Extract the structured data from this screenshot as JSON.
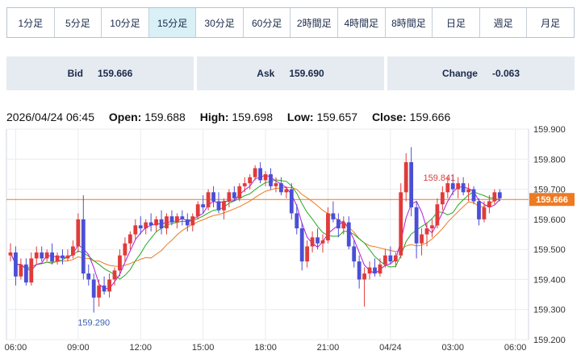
{
  "tabs": [
    {
      "label": "1分足"
    },
    {
      "label": "5分足"
    },
    {
      "label": "10分足"
    },
    {
      "label": "15分足",
      "active": true
    },
    {
      "label": "30分足"
    },
    {
      "label": "60分足"
    },
    {
      "label": "2時間足"
    },
    {
      "label": "4時間足"
    },
    {
      "label": "8時間足"
    },
    {
      "label": "日足"
    },
    {
      "label": "週足"
    },
    {
      "label": "月足"
    }
  ],
  "quotes": {
    "bid_label": "Bid",
    "bid_value": "159.666",
    "ask_label": "Ask",
    "ask_value": "159.690",
    "change_label": "Change",
    "change_value": "-0.063"
  },
  "ohlc": {
    "datetime": "2026/04/24 06:45",
    "open_label": "Open:",
    "open": "159.688",
    "high_label": "High:",
    "high": "159.698",
    "low_label": "Low:",
    "low": "159.657",
    "close_label": "Close:",
    "close": "159.666"
  },
  "colors": {
    "up": "#e03b3b",
    "down": "#4a4fd6",
    "ma_short": "#b21ad6",
    "ma_mid": "#22a822",
    "ma_long": "#ee7a22",
    "price_line": "#ee7a22"
  },
  "chart_data": {
    "type": "candlestick",
    "y_ticks": [
      159.2,
      159.3,
      159.4,
      159.5,
      159.6,
      159.7,
      159.8,
      159.9
    ],
    "ylim": [
      159.2,
      159.9
    ],
    "x_ticks": [
      {
        "label": "06:00",
        "i": 1
      },
      {
        "label": "09:00",
        "i": 13
      },
      {
        "label": "12:00",
        "i": 25
      },
      {
        "label": "15:00",
        "i": 37
      },
      {
        "label": "18:00",
        "i": 49
      },
      {
        "label": "21:00",
        "i": 61
      },
      {
        "label": "04/24",
        "i": 73
      },
      {
        "label": "03:00",
        "i": 85
      },
      {
        "label": "06:00",
        "i": 97
      }
    ],
    "current_price": 159.666,
    "annotations": [
      {
        "text": "159.841",
        "i": 83
      },
      {
        "text": "159.290",
        "i": 16
      }
    ],
    "candles": [
      [
        159.48,
        159.52,
        159.46,
        159.49
      ],
      [
        159.49,
        159.51,
        159.38,
        159.41
      ],
      [
        159.41,
        159.47,
        159.4,
        159.45
      ],
      [
        159.45,
        159.47,
        159.38,
        159.39
      ],
      [
        159.39,
        159.49,
        159.38,
        159.47
      ],
      [
        159.47,
        159.51,
        159.45,
        159.49
      ],
      [
        159.49,
        159.51,
        159.46,
        159.47
      ],
      [
        159.47,
        159.5,
        159.46,
        159.49
      ],
      [
        159.49,
        159.52,
        159.45,
        159.46
      ],
      [
        159.46,
        159.49,
        159.45,
        159.48
      ],
      [
        159.48,
        159.5,
        159.45,
        159.47
      ],
      [
        159.47,
        159.5,
        159.46,
        159.48
      ],
      [
        159.48,
        159.53,
        159.47,
        159.51
      ],
      [
        159.51,
        159.62,
        159.49,
        159.6
      ],
      [
        159.6,
        159.68,
        159.4,
        159.42
      ],
      [
        159.42,
        159.45,
        159.38,
        159.4
      ],
      [
        159.4,
        159.42,
        159.29,
        159.34
      ],
      [
        159.34,
        159.4,
        159.31,
        159.38
      ],
      [
        159.38,
        159.41,
        159.35,
        159.36
      ],
      [
        159.36,
        159.42,
        159.34,
        159.4
      ],
      [
        159.4,
        159.44,
        159.38,
        159.43
      ],
      [
        159.43,
        159.5,
        159.41,
        159.48
      ],
      [
        159.48,
        159.54,
        159.46,
        159.52
      ],
      [
        159.52,
        159.56,
        159.5,
        159.55
      ],
      [
        159.55,
        159.6,
        159.53,
        159.58
      ],
      [
        159.58,
        159.61,
        159.55,
        159.57
      ],
      [
        159.57,
        159.6,
        159.55,
        159.59
      ],
      [
        159.59,
        159.62,
        159.56,
        159.58
      ],
      [
        159.58,
        159.61,
        159.56,
        159.6
      ],
      [
        159.6,
        159.63,
        159.55,
        159.57
      ],
      [
        159.57,
        159.62,
        159.55,
        159.61
      ],
      [
        159.61,
        159.63,
        159.58,
        159.59
      ],
      [
        159.59,
        159.62,
        159.57,
        159.61
      ],
      [
        159.61,
        159.63,
        159.58,
        159.6
      ],
      [
        159.6,
        159.62,
        159.56,
        159.58
      ],
      [
        159.58,
        159.62,
        159.56,
        159.61
      ],
      [
        159.61,
        159.66,
        159.6,
        159.65
      ],
      [
        159.65,
        159.68,
        159.62,
        159.64
      ],
      [
        159.64,
        159.7,
        159.63,
        159.69
      ],
      [
        159.69,
        159.71,
        159.64,
        159.66
      ],
      [
        159.66,
        159.69,
        159.62,
        159.63
      ],
      [
        159.63,
        159.67,
        159.6,
        159.66
      ],
      [
        159.66,
        159.7,
        159.64,
        159.69
      ],
      [
        159.69,
        159.71,
        159.66,
        159.67
      ],
      [
        159.67,
        159.72,
        159.66,
        159.71
      ],
      [
        159.71,
        159.74,
        159.69,
        159.72
      ],
      [
        159.72,
        159.75,
        159.7,
        159.74
      ],
      [
        159.74,
        159.78,
        159.73,
        159.77
      ],
      [
        159.77,
        159.79,
        159.72,
        159.73
      ],
      [
        159.73,
        159.76,
        159.71,
        159.75
      ],
      [
        159.75,
        159.77,
        159.7,
        159.71
      ],
      [
        159.71,
        159.74,
        159.69,
        159.72
      ],
      [
        159.72,
        159.74,
        159.68,
        159.69
      ],
      [
        159.69,
        159.71,
        159.67,
        159.7
      ],
      [
        159.7,
        159.72,
        159.6,
        159.62
      ],
      [
        159.62,
        159.65,
        159.55,
        159.57
      ],
      [
        159.57,
        159.59,
        159.43,
        159.46
      ],
      [
        159.46,
        159.53,
        159.44,
        159.51
      ],
      [
        159.51,
        159.56,
        159.49,
        159.54
      ],
      [
        159.54,
        159.57,
        159.5,
        159.52
      ],
      [
        159.52,
        159.55,
        159.49,
        159.53
      ],
      [
        159.53,
        159.64,
        159.52,
        159.62
      ],
      [
        159.62,
        159.66,
        159.59,
        159.6
      ],
      [
        159.6,
        159.62,
        159.54,
        159.57
      ],
      [
        159.57,
        159.61,
        159.55,
        159.59
      ],
      [
        159.59,
        159.61,
        159.5,
        159.51
      ],
      [
        159.51,
        159.53,
        159.44,
        159.46
      ],
      [
        159.46,
        159.48,
        159.37,
        159.4
      ],
      [
        159.4,
        159.44,
        159.31,
        159.42
      ],
      [
        159.42,
        159.46,
        159.4,
        159.44
      ],
      [
        159.44,
        159.47,
        159.41,
        159.42
      ],
      [
        159.42,
        159.47,
        159.41,
        159.45
      ],
      [
        159.45,
        159.5,
        159.44,
        159.48
      ],
      [
        159.48,
        159.51,
        159.45,
        159.46
      ],
      [
        159.46,
        159.49,
        159.44,
        159.48
      ],
      [
        159.48,
        159.72,
        159.47,
        159.69
      ],
      [
        159.69,
        159.82,
        159.66,
        159.79
      ],
      [
        159.79,
        159.84,
        159.61,
        159.64
      ],
      [
        159.64,
        159.66,
        159.47,
        159.52
      ],
      [
        159.52,
        159.57,
        159.48,
        159.55
      ],
      [
        159.55,
        159.59,
        159.51,
        159.57
      ],
      [
        159.57,
        159.6,
        159.54,
        159.58
      ],
      [
        159.58,
        159.67,
        159.57,
        159.65
      ],
      [
        159.65,
        159.71,
        159.63,
        159.69
      ],
      [
        159.69,
        159.74,
        159.67,
        159.72
      ],
      [
        159.72,
        159.75,
        159.68,
        159.7
      ],
      [
        159.7,
        159.74,
        159.67,
        159.72
      ],
      [
        159.72,
        159.74,
        159.68,
        159.69
      ],
      [
        159.69,
        159.72,
        159.66,
        159.7
      ],
      [
        159.7,
        159.71,
        159.65,
        159.66
      ],
      [
        159.66,
        159.67,
        159.58,
        159.6
      ],
      [
        159.6,
        159.66,
        159.59,
        159.64
      ],
      [
        159.64,
        159.68,
        159.62,
        159.66
      ],
      [
        159.66,
        159.7,
        159.65,
        159.69
      ],
      [
        159.69,
        159.7,
        159.66,
        159.67
      ]
    ]
  }
}
